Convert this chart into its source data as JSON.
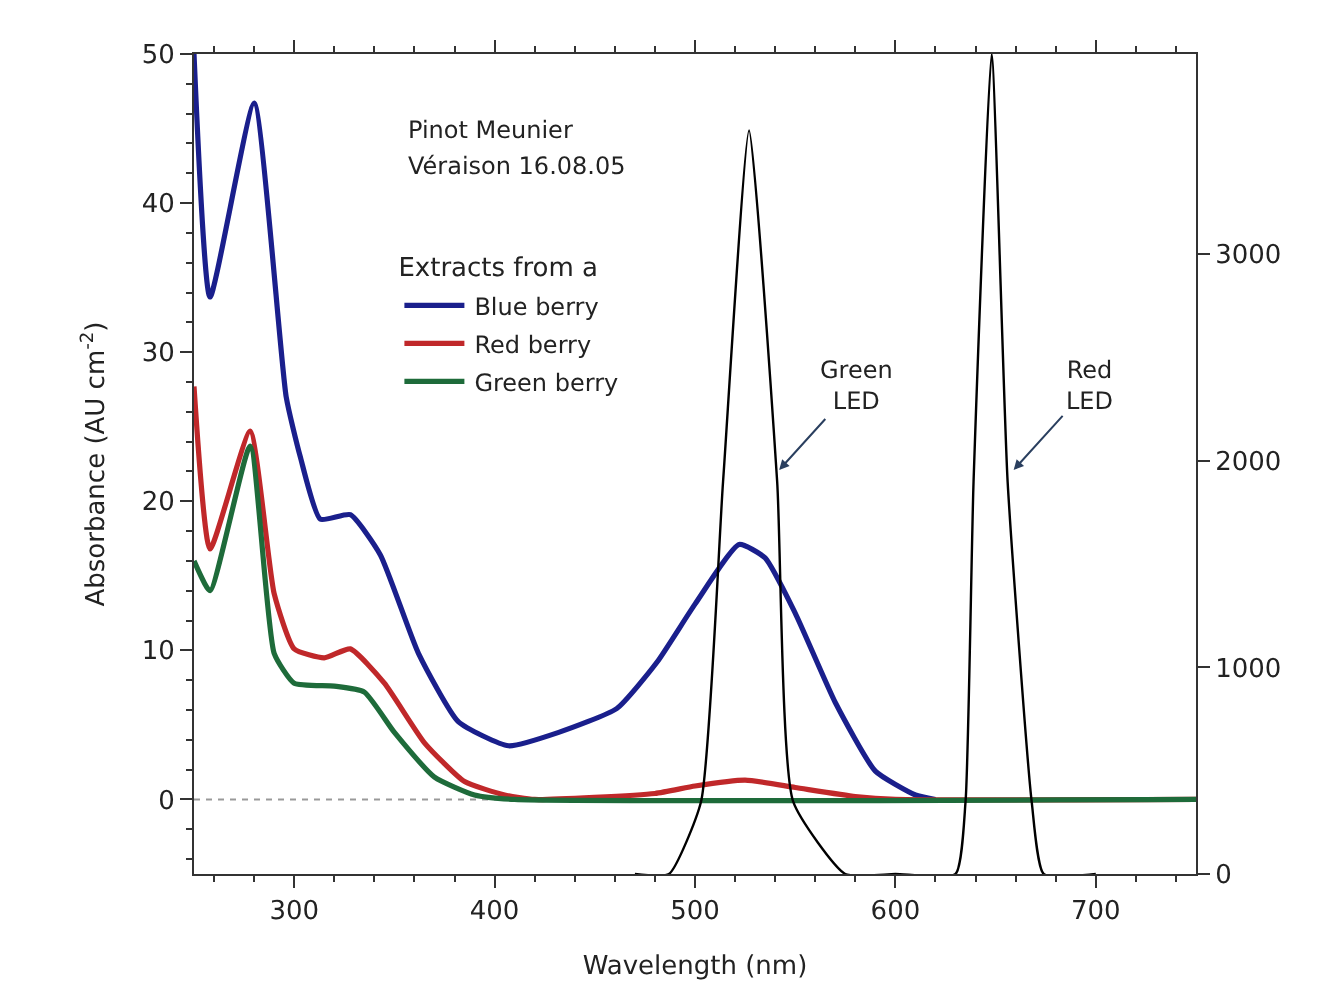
{
  "chart_data": {
    "type": "line",
    "xlabel": "Wavelength (nm)",
    "ylabel": "Absorbance (AU cm$^{-2}$)",
    "legend_title": "Extracts from a",
    "annotations": [
      "Pinot Meunier",
      "Véraison 16.08.05",
      {
        "text": "Green LED",
        "x": 542,
        "y": 22.1
      },
      {
        "text": "Red LED",
        "x": 659,
        "y": 22.1
      }
    ],
    "xlim": [
      250,
      750
    ],
    "xticks": [
      300,
      400,
      500,
      600,
      700
    ],
    "ylim": [
      -5,
      50
    ],
    "yticks": [
      0,
      10,
      20,
      30,
      40,
      50
    ],
    "y2lim": [
      0,
      3970
    ],
    "y2ticks": [
      0,
      1000,
      2000,
      3000
    ],
    "legend": "top left",
    "grid": false,
    "marker": "none",
    "line_style": "solid",
    "ref_lines": [
      {
        "axis": "y",
        "value": 0,
        "color": "#999999",
        "line_style": "dotted"
      }
    ],
    "series": [
      {
        "name": "Blue berry",
        "color": "#1a1f8c",
        "x": [
          250,
          258,
          280,
          296,
          303,
          313,
          328,
          343,
          362,
          382,
          407,
          432,
          461,
          481,
          500,
          522,
          535,
          550,
          570,
          590,
          610,
          620
        ],
        "values": [
          50,
          33.7,
          46.7,
          27,
          23,
          18.8,
          19.1,
          16.4,
          9.8,
          5.2,
          3.6,
          4.5,
          6.1,
          9.2,
          13.1,
          17.1,
          16.2,
          12.5,
          6.5,
          1.9,
          0.3,
          0
        ]
      },
      {
        "name": "Red berry",
        "color": "#c0282a",
        "x": [
          250,
          258,
          278,
          290,
          300,
          315,
          328,
          345,
          365,
          385,
          405,
          420,
          480,
          500,
          525,
          550,
          580,
          600,
          750
        ],
        "values": [
          27.7,
          16.8,
          24.7,
          13.8,
          10.1,
          9.5,
          10.1,
          7.8,
          3.8,
          1.2,
          0.3,
          0,
          0.4,
          0.9,
          1.3,
          0.8,
          0.2,
          0,
          0
        ]
      },
      {
        "name": "Green berry",
        "color": "#1e6b3a",
        "x": [
          250,
          258,
          278,
          290,
          300,
          320,
          335,
          350,
          370,
          390,
          410,
          750
        ],
        "values": [
          16,
          14,
          23.7,
          9.8,
          7.8,
          7.6,
          7.2,
          4.5,
          1.5,
          0.3,
          0,
          0
        ]
      },
      {
        "color": "#000000",
        "axis": "y2",
        "x": [
          470,
          487,
          503,
          514,
          527,
          541,
          549,
          575,
          600,
          630,
          635,
          639,
          648,
          656,
          668,
          674,
          700
        ],
        "values": [
          0,
          0,
          350,
          1900,
          3600,
          1900,
          350,
          0,
          0,
          0,
          350,
          1900,
          3970,
          1900,
          350,
          0,
          0
        ]
      }
    ]
  }
}
